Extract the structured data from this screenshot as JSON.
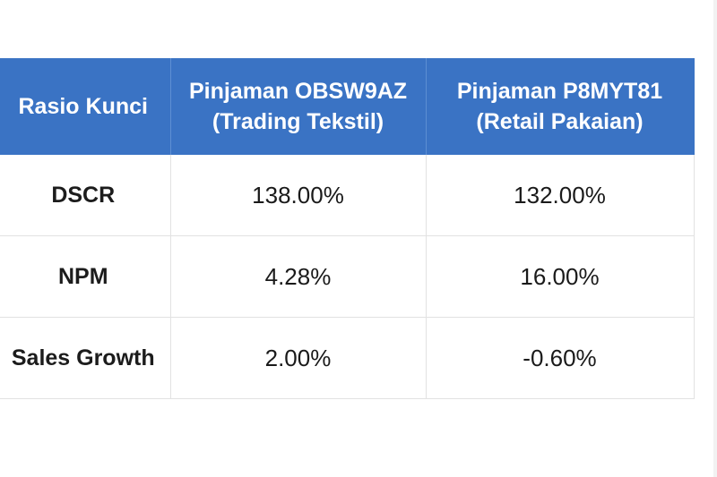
{
  "table": {
    "headers": [
      {
        "line1": "Rasio Kunci",
        "line2": ""
      },
      {
        "line1": "Pinjaman OBSW9AZ",
        "line2": "(Trading Tekstil)"
      },
      {
        "line1": "Pinjaman P8MYT81",
        "line2": "(Retail Pakaian)"
      }
    ],
    "rows": [
      {
        "label": "DSCR",
        "values": [
          "138.00%",
          "132.00%"
        ]
      },
      {
        "label": "NPM",
        "values": [
          "4.28%",
          "16.00%"
        ]
      },
      {
        "label": "Sales Growth",
        "values": [
          "2.00%",
          "-0.60%"
        ]
      }
    ]
  },
  "colors": {
    "header_bg": "#3a73c4",
    "header_text": "#ffffff",
    "border": "#e2e2e2"
  }
}
